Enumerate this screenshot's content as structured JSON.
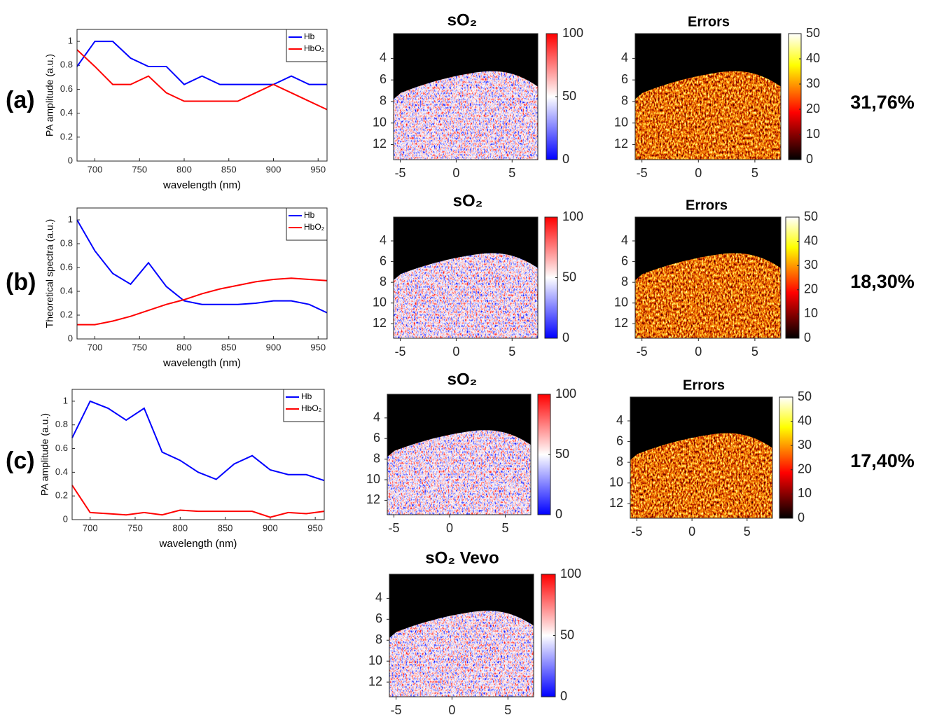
{
  "panel_labels": [
    "(a)",
    "(b)",
    "(c)"
  ],
  "error_rates": [
    "31,76%",
    "18,30%",
    "17,40%"
  ],
  "chart_data": [
    {
      "type": "line",
      "x": [
        680,
        700,
        720,
        740,
        760,
        780,
        800,
        820,
        840,
        860,
        880,
        900,
        920,
        940,
        960
      ],
      "xlim": [
        680,
        960
      ],
      "xticks": [
        700,
        750,
        800,
        850,
        900,
        950
      ],
      "ylim": [
        0,
        1.1
      ],
      "yticks": [
        0,
        0.2,
        0.4,
        0.6,
        0.8,
        1
      ],
      "xlabel": "wavelength (nm)",
      "ylabel": "PA amplitude (a.u.)",
      "legend": "upper right",
      "series": [
        {
          "name": "Hb",
          "color": "#0000ff",
          "values": [
            0.79,
            1.0,
            1.0,
            0.86,
            0.79,
            0.79,
            0.64,
            0.71,
            0.64,
            0.64,
            0.64,
            0.64,
            0.71,
            0.64,
            0.64
          ]
        },
        {
          "name": "HbO₂",
          "color": "#ff0000",
          "values": [
            0.93,
            0.79,
            0.64,
            0.64,
            0.71,
            0.57,
            0.5,
            0.5,
            0.5,
            0.5,
            0.57,
            0.64,
            0.57,
            0.5,
            0.43
          ]
        }
      ]
    },
    {
      "type": "line",
      "x": [
        680,
        700,
        720,
        740,
        760,
        780,
        800,
        820,
        840,
        860,
        880,
        900,
        920,
        940,
        960
      ],
      "xlim": [
        680,
        960
      ],
      "xticks": [
        700,
        750,
        800,
        850,
        900,
        950
      ],
      "ylim": [
        0,
        1.1
      ],
      "yticks": [
        0,
        0.2,
        0.4,
        0.6,
        0.8,
        1
      ],
      "xlabel": "wavelength (nm)",
      "ylabel": "Theoretical spectra (a.u.)",
      "legend": "upper right",
      "series": [
        {
          "name": "Hb",
          "color": "#0000ff",
          "values": [
            1.0,
            0.74,
            0.55,
            0.46,
            0.64,
            0.44,
            0.32,
            0.29,
            0.29,
            0.29,
            0.3,
            0.32,
            0.32,
            0.29,
            0.22
          ]
        },
        {
          "name": "HbO₂",
          "color": "#ff0000",
          "values": [
            0.12,
            0.12,
            0.15,
            0.19,
            0.24,
            0.29,
            0.33,
            0.38,
            0.42,
            0.45,
            0.48,
            0.5,
            0.51,
            0.5,
            0.49
          ]
        }
      ]
    },
    {
      "type": "line",
      "x": [
        680,
        700,
        720,
        740,
        760,
        780,
        800,
        820,
        840,
        860,
        880,
        900,
        920,
        940,
        960
      ],
      "xlim": [
        680,
        960
      ],
      "xticks": [
        700,
        750,
        800,
        850,
        900,
        950
      ],
      "ylim": [
        0,
        1.1
      ],
      "yticks": [
        0,
        0.2,
        0.4,
        0.6,
        0.8,
        1
      ],
      "xlabel": "wavelength (nm)",
      "ylabel": "PA amplitude (a.u.)",
      "legend": "upper right",
      "series": [
        {
          "name": "Hb",
          "color": "#0000ff",
          "values": [
            0.69,
            1.0,
            0.94,
            0.84,
            0.94,
            0.57,
            0.5,
            0.4,
            0.34,
            0.47,
            0.54,
            0.42,
            0.38,
            0.38,
            0.33
          ]
        },
        {
          "name": "HbO₂",
          "color": "#ff0000",
          "values": [
            0.29,
            0.06,
            0.05,
            0.04,
            0.06,
            0.04,
            0.08,
            0.07,
            0.07,
            0.07,
            0.07,
            0.02,
            0.06,
            0.05,
            0.07
          ]
        }
      ]
    },
    {
      "type": "heatmap",
      "title": "sO₂",
      "colormap": "bwr",
      "xlim": [
        -5.6,
        7.3
      ],
      "xticks": [
        -5,
        0,
        5
      ],
      "ylim": [
        1.7,
        13.4
      ],
      "yticks": [
        4,
        6,
        8,
        10,
        12
      ],
      "y_reversed": true,
      "clim": [
        0,
        100
      ],
      "cticks": [
        0,
        50,
        100
      ]
    },
    {
      "type": "heatmap",
      "title": "sO₂",
      "colormap": "bwr",
      "xlim": [
        -5.6,
        7.3
      ],
      "xticks": [
        -5,
        0,
        5
      ],
      "ylim": [
        1.7,
        13.4
      ],
      "yticks": [
        4,
        6,
        8,
        10,
        12
      ],
      "y_reversed": true,
      "clim": [
        0,
        100
      ],
      "cticks": [
        0,
        50,
        100
      ]
    },
    {
      "type": "heatmap",
      "title": "sO₂",
      "colormap": "bwr",
      "xlim": [
        -5.6,
        7.3
      ],
      "xticks": [
        -5,
        0,
        5
      ],
      "ylim": [
        1.7,
        13.4
      ],
      "yticks": [
        4,
        6,
        8,
        10,
        12
      ],
      "y_reversed": true,
      "clim": [
        0,
        100
      ],
      "cticks": [
        0,
        50,
        100
      ]
    },
    {
      "type": "heatmap",
      "title": "sO₂  Vevo",
      "colormap": "bwr",
      "xlim": [
        -5.6,
        7.3
      ],
      "xticks": [
        -5,
        0,
        5
      ],
      "ylim": [
        1.7,
        13.4
      ],
      "yticks": [
        4,
        6,
        8,
        10,
        12
      ],
      "y_reversed": true,
      "clim": [
        0,
        100
      ],
      "cticks": [
        0,
        50,
        100
      ]
    },
    {
      "type": "heatmap",
      "title": "Errors",
      "colormap": "hot",
      "xlim": [
        -5.6,
        7.3
      ],
      "xticks": [
        -5,
        0,
        5
      ],
      "ylim": [
        1.7,
        13.4
      ],
      "yticks": [
        4,
        6,
        8,
        10,
        12
      ],
      "y_reversed": true,
      "clim": [
        0,
        50
      ],
      "cticks": [
        0,
        10,
        20,
        30,
        40,
        50
      ]
    },
    {
      "type": "heatmap",
      "title": "Errors",
      "colormap": "hot",
      "xlim": [
        -5.6,
        7.3
      ],
      "xticks": [
        -5,
        0,
        5
      ],
      "ylim": [
        1.7,
        13.4
      ],
      "yticks": [
        4,
        6,
        8,
        10,
        12
      ],
      "y_reversed": true,
      "clim": [
        0,
        50
      ],
      "cticks": [
        0,
        10,
        20,
        30,
        40,
        50
      ]
    },
    {
      "type": "heatmap",
      "title": "Errors",
      "colormap": "hot",
      "xlim": [
        -5.6,
        7.3
      ],
      "xticks": [
        -5,
        0,
        5
      ],
      "ylim": [
        1.7,
        13.4
      ],
      "yticks": [
        4,
        6,
        8,
        10,
        12
      ],
      "y_reversed": true,
      "clim": [
        0,
        50
      ],
      "cticks": [
        0,
        10,
        20,
        30,
        40,
        50
      ]
    }
  ]
}
